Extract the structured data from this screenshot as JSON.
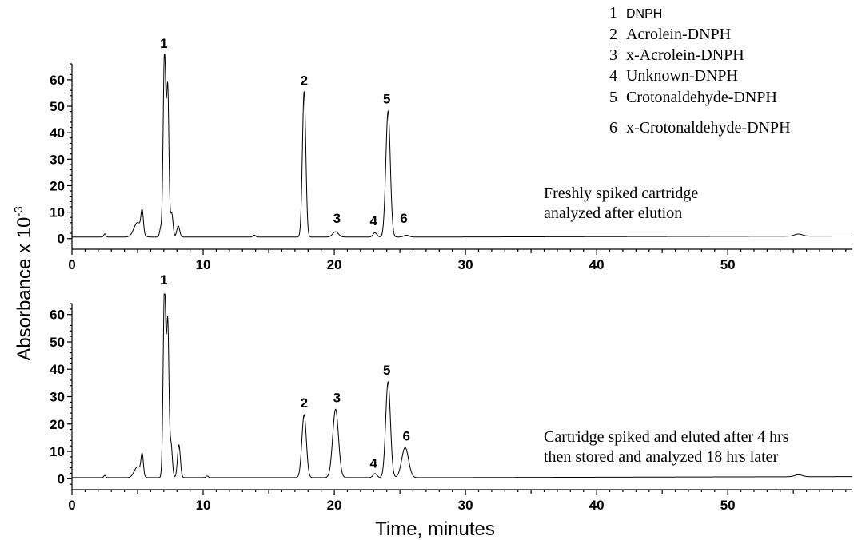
{
  "chart_data": {
    "type": "line",
    "ylabel_base": "Absorbance x 10",
    "ylabel_exp": "-3",
    "xlabel": "Time, minutes",
    "legend": [
      {
        "num": "1",
        "label": "DNPH"
      },
      {
        "num": "2",
        "label": "Acrolein-DNPH"
      },
      {
        "num": "3",
        "label": "x-Acrolein-DNPH"
      },
      {
        "num": "4",
        "label": "Unknown-DNPH"
      },
      {
        "num": "5",
        "label": "Crotonaldehyde-DNPH"
      },
      {
        "num": "6",
        "label": "x-Crotonaldehyde-DNPH"
      }
    ],
    "panels": [
      {
        "name": "top",
        "annotation": [
          "Freshly spiked cartridge",
          "analyzed after elution"
        ],
        "xlim": [
          0,
          59.5
        ],
        "ylim": [
          -4,
          66
        ],
        "xticks": [
          0,
          10,
          20,
          30,
          40,
          50
        ],
        "yticks": [
          0,
          10,
          20,
          30,
          40,
          50,
          60
        ],
        "baseline": 0.6,
        "peaks": [
          {
            "t": 2.5,
            "h": 1.2,
            "w": 0.08
          },
          {
            "t": 5.0,
            "h": 5.5,
            "w": 0.28
          },
          {
            "t": 5.35,
            "h": 8.0,
            "w": 0.09
          },
          {
            "t": 6.75,
            "h": 3.0,
            "w": 0.08
          },
          {
            "t": 7.05,
            "h": 70.0,
            "w": 0.1
          },
          {
            "t": 7.3,
            "h": 55.0,
            "w": 0.09
          },
          {
            "t": 7.6,
            "h": 9.0,
            "w": 0.1
          },
          {
            "t": 8.1,
            "h": 4.2,
            "w": 0.11
          },
          {
            "t": 13.9,
            "h": 0.7,
            "w": 0.1
          },
          {
            "t": 17.7,
            "h": 55.0,
            "w": 0.13
          },
          {
            "t": 20.1,
            "h": 2.0,
            "w": 0.22
          },
          {
            "t": 23.1,
            "h": 1.6,
            "w": 0.15
          },
          {
            "t": 24.1,
            "h": 47.5,
            "w": 0.17
          },
          {
            "t": 25.5,
            "h": 0.7,
            "w": 0.2
          },
          {
            "t": 55.4,
            "h": 0.8,
            "w": 0.3
          }
        ],
        "peak_labels": [
          {
            "num": "1",
            "t": 7.0,
            "y": 72
          },
          {
            "num": "2",
            "t": 17.7,
            "y": 58
          },
          {
            "num": "3",
            "t": 20.2,
            "y": 6
          },
          {
            "num": "4",
            "t": 23.0,
            "y": 5
          },
          {
            "num": "5",
            "t": 24.0,
            "y": 51
          },
          {
            "num": "6",
            "t": 25.3,
            "y": 6
          }
        ]
      },
      {
        "name": "bottom",
        "annotation": [
          "Cartridge spiked  and eluted after  4 hrs",
          "then stored and  analyzed 18 hrs later"
        ],
        "xlim": [
          0,
          59.5
        ],
        "ylim": [
          -4,
          64
        ],
        "xticks": [
          0,
          10,
          20,
          30,
          40,
          50
        ],
        "yticks": [
          0,
          10,
          20,
          30,
          40,
          50,
          60
        ],
        "baseline": 0.4,
        "peaks": [
          {
            "t": 2.5,
            "h": 0.8,
            "w": 0.08
          },
          {
            "t": 5.0,
            "h": 4.0,
            "w": 0.25
          },
          {
            "t": 5.35,
            "h": 7.5,
            "w": 0.09
          },
          {
            "t": 7.05,
            "h": 70.0,
            "w": 0.1
          },
          {
            "t": 7.3,
            "h": 55.0,
            "w": 0.09
          },
          {
            "t": 7.55,
            "h": 12.0,
            "w": 0.1
          },
          {
            "t": 8.15,
            "h": 12.0,
            "w": 0.11
          },
          {
            "t": 10.3,
            "h": 0.6,
            "w": 0.1
          },
          {
            "t": 17.7,
            "h": 23.0,
            "w": 0.17
          },
          {
            "t": 20.1,
            "h": 25.0,
            "w": 0.22
          },
          {
            "t": 23.1,
            "h": 1.5,
            "w": 0.15
          },
          {
            "t": 24.1,
            "h": 35.0,
            "w": 0.18
          },
          {
            "t": 25.4,
            "h": 11.0,
            "w": 0.26
          },
          {
            "t": 55.4,
            "h": 0.7,
            "w": 0.3
          }
        ],
        "peak_labels": [
          {
            "num": "1",
            "t": 7.0,
            "y": 71
          },
          {
            "num": "2",
            "t": 17.7,
            "y": 26
          },
          {
            "num": "3",
            "t": 20.2,
            "y": 28
          },
          {
            "num": "4",
            "t": 23.0,
            "y": 4
          },
          {
            "num": "5",
            "t": 24.0,
            "y": 38
          },
          {
            "num": "6",
            "t": 25.5,
            "y": 14
          }
        ]
      }
    ]
  }
}
